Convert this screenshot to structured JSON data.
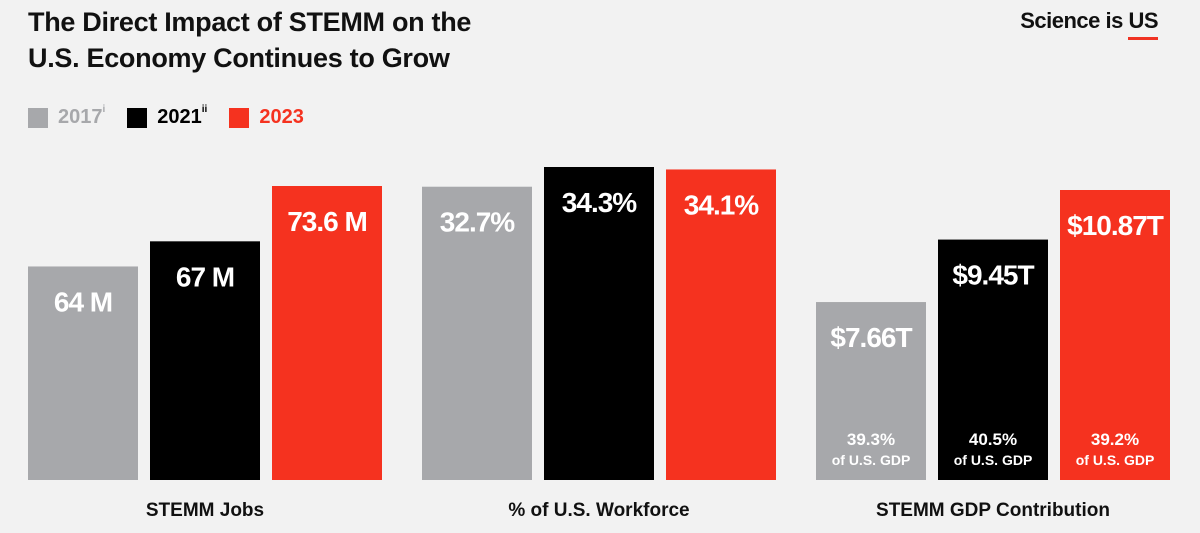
{
  "header": {
    "title_line1": "The Direct Impact of STEMM on the",
    "title_line2": "U.S. Economy Continues to Grow",
    "brand_prefix": "Science is ",
    "brand_emph": "US"
  },
  "colors": {
    "2017": "#a7a8ab",
    "2021": "#000000",
    "2023": "#f5321f",
    "brand_accent": "#f03323"
  },
  "chart_data": {
    "type": "bar",
    "title": "The Direct Impact of STEMM on the U.S. Economy Continues to Grow",
    "legend": [
      {
        "name": "2017",
        "sup": "i",
        "color": "#a7a8ab"
      },
      {
        "name": "2021",
        "sup": "ii",
        "color": "#000000"
      },
      {
        "name": "2023",
        "sup": "",
        "color": "#f5321f"
      }
    ],
    "legend_position": "top-left",
    "grid": false,
    "groups": [
      {
        "category": "STEMM Jobs",
        "unit": "M",
        "values": [
          64,
          67,
          73.6
        ],
        "labels": [
          "64 M",
          "67 M",
          "73.6 M"
        ],
        "ylim": [
          0,
          73.6
        ]
      },
      {
        "category": "% of U.S. Workforce",
        "unit": "%",
        "values": [
          32.7,
          34.3,
          34.1
        ],
        "labels": [
          "32.7%",
          "34.3%",
          "34.1%"
        ],
        "ylim": [
          0,
          34.3
        ]
      },
      {
        "category": "STEMM GDP Contribution",
        "unit": "T USD",
        "values": [
          7.66,
          9.45,
          10.87
        ],
        "labels": [
          "$7.66T",
          "$9.45T",
          "$10.87T"
        ],
        "sublabels": [
          "39.3%",
          "40.5%",
          "39.2%"
        ],
        "sublabel_suffix": "of U.S. GDP",
        "ylim": [
          0,
          10.87
        ]
      }
    ]
  }
}
